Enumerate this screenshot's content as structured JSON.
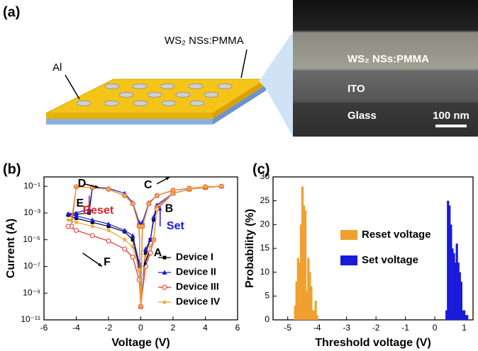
{
  "panel_labels": [
    "(a)",
    "(b)",
    "(c)"
  ],
  "schematic": {
    "labels": [
      "WS₂ NSs:PMMA",
      "Al"
    ]
  },
  "sem": {
    "labels": [
      "WS₂ NSs:PMMA",
      "ITO",
      "Glass"
    ],
    "scale_bar": "100 nm"
  },
  "chart_data": [
    {
      "type": "line",
      "xlabel": "Voltage (V)",
      "ylabel": "Current (A)",
      "yscale": "log",
      "xlim": [
        -6,
        6
      ],
      "xticks": [
        -6,
        -4,
        -2,
        0,
        2,
        4,
        6
      ],
      "ylim": [
        1e-11,
        0.5
      ],
      "yticks": [
        {
          "value": 1e-11,
          "label": "10⁻¹¹"
        },
        {
          "value": 1e-09,
          "label": "10⁻⁹"
        },
        {
          "value": 1e-07,
          "label": "10⁻⁷"
        },
        {
          "value": 1e-05,
          "label": "10⁻⁵"
        },
        {
          "value": 0.001,
          "label": "10⁻³"
        },
        {
          "value": 0.1,
          "label": "10⁻¹"
        }
      ],
      "legend": "lower right",
      "annotations": [
        "A",
        "B",
        "C",
        "D",
        "E",
        "F",
        "Reset",
        "Set"
      ],
      "series": [
        {
          "name": "Device I",
          "color": "#000000",
          "marker": "square",
          "x": [
            0,
            0.3,
            0.6,
            0.8,
            1,
            2,
            3,
            4,
            5,
            4,
            3,
            2,
            1,
            0.5,
            0.1,
            0,
            -0.1,
            -0.5,
            -1,
            -2,
            -3,
            -3.2,
            -4,
            -4.5,
            -4,
            -3,
            -2,
            -1,
            -0.5,
            -0.1,
            0
          ],
          "values": [
            1e-10,
            1e-06,
            1e-05,
            0.0003,
            0.003,
            0.03,
            0.06,
            0.08,
            0.1,
            0.09,
            0.07,
            0.05,
            0.02,
            0.005,
            0.0001,
            1e-10,
            0.0001,
            0.005,
            0.02,
            0.06,
            0.08,
            0.001,
            0.0008,
            0.0007,
            0.0004,
            0.0002,
            0.0001,
            4e-05,
            1e-05,
            1e-07,
            1e-10
          ]
        },
        {
          "name": "Device II",
          "color": "#1a1adb",
          "marker": "triangle",
          "x": [
            0,
            0.3,
            0.6,
            0.8,
            1,
            2,
            3,
            4,
            5,
            4,
            3,
            2,
            1,
            0.5,
            0.1,
            0,
            -0.1,
            -0.5,
            -1,
            -2,
            -3,
            -3.2,
            -4,
            -4.5,
            -4,
            -3,
            -2,
            -1,
            -0.5,
            -0.1,
            0
          ],
          "values": [
            1e-10,
            2e-06,
            1e-05,
            0.0005,
            0.004,
            0.03,
            0.06,
            0.08,
            0.1,
            0.09,
            0.07,
            0.05,
            0.02,
            0.006,
            0.0002,
            1e-10,
            0.0002,
            0.006,
            0.03,
            0.07,
            0.09,
            0.002,
            0.001,
            0.0009,
            0.0006,
            0.0003,
            0.00015,
            5e-05,
            2e-05,
            2e-07,
            1e-10
          ]
        },
        {
          "name": "Device III",
          "color": "#e03030",
          "marker": "circle",
          "x": [
            0,
            0.3,
            0.6,
            0.8,
            1,
            2,
            3,
            4,
            5,
            4,
            3,
            2,
            1,
            0.5,
            0.1,
            0,
            -0.1,
            -0.5,
            -1,
            -2,
            -3,
            -4,
            -4.3,
            -4.5,
            -4,
            -3,
            -2,
            -1,
            -0.5,
            -0.1,
            0
          ],
          "values": [
            1e-10,
            1e-07,
            1e-06,
            1e-05,
            0.002,
            0.03,
            0.06,
            0.08,
            0.1,
            0.09,
            0.07,
            0.05,
            0.02,
            0.005,
            0.0001,
            1e-10,
            0.0001,
            0.005,
            0.02,
            0.06,
            0.08,
            0.09,
            0.0001,
            0.0001,
            5e-05,
            2e-05,
            8e-06,
            2e-06,
            5e-07,
            1e-08,
            1e-10
          ]
        },
        {
          "name": "Device IV",
          "color": "#f0a030",
          "marker": "star",
          "x": [
            0,
            0.3,
            0.6,
            0.8,
            1,
            2,
            3,
            4,
            5,
            4,
            3,
            2,
            1,
            0.5,
            0.1,
            0,
            -0.1,
            -0.5,
            -1,
            -2,
            -3,
            -4,
            -4.3,
            -4.5,
            -4,
            -3,
            -2,
            -1,
            -0.5,
            -0.1,
            0
          ],
          "values": [
            1e-10,
            5e-07,
            3e-06,
            1e-05,
            0.003,
            0.03,
            0.06,
            0.08,
            0.1,
            0.09,
            0.07,
            0.05,
            0.02,
            0.005,
            0.0001,
            1e-10,
            0.0001,
            0.005,
            0.02,
            0.06,
            0.08,
            0.09,
            0.0003,
            0.0003,
            0.0002,
            0.0001,
            5e-05,
            1e-05,
            3e-06,
            5e-08,
            1e-10
          ]
        }
      ]
    },
    {
      "type": "bar",
      "xlabel": "Threshold voltage (V)",
      "ylabel": "Probability (%)",
      "xlim": [
        -5.5,
        1.3
      ],
      "xticks": [
        -5,
        -4,
        -3,
        -2,
        -1,
        0,
        1
      ],
      "ylim": [
        0,
        30
      ],
      "yticks": [
        0,
        5,
        10,
        15,
        20,
        25,
        30
      ],
      "legend": "center",
      "series": [
        {
          "name": "Reset voltage",
          "color": "#f0a030",
          "x": [
            -4.75,
            -4.7,
            -4.65,
            -4.6,
            -4.55,
            -4.5,
            -4.45,
            -4.4,
            -4.35,
            -4.3,
            -4.25,
            -4.2,
            -4.15,
            -4.1,
            -4.05,
            -4.0
          ],
          "values": [
            3,
            8,
            13,
            12,
            20,
            28,
            24,
            23,
            6,
            13,
            10,
            7,
            2,
            2,
            4,
            1
          ]
        },
        {
          "name": "Set voltage",
          "color": "#1a1adb",
          "x": [
            0.4,
            0.45,
            0.5,
            0.55,
            0.6,
            0.65,
            0.7,
            0.75,
            0.8,
            0.85,
            0.9,
            0.95,
            1.0,
            1.05,
            1.1
          ],
          "values": [
            2,
            25,
            24,
            20,
            15,
            14,
            12,
            16,
            12,
            10,
            8,
            2,
            2,
            1,
            1
          ]
        }
      ]
    }
  ]
}
